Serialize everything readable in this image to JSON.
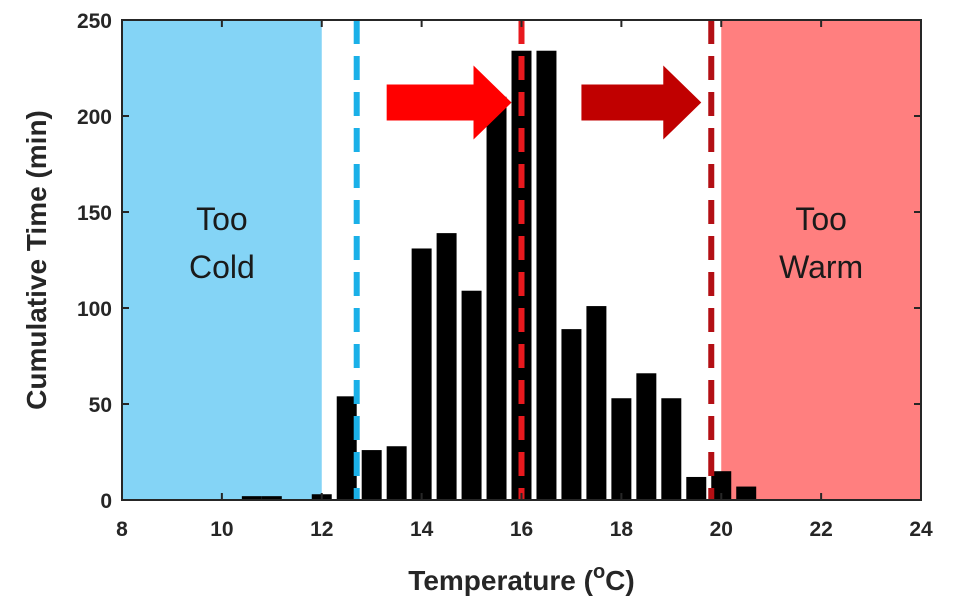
{
  "chart_data": {
    "type": "bar",
    "xlabel": "Temperature (",
    "xlabel_sup": "o",
    "xlabel_unit": "C)",
    "ylabel": "Cumulative Time (min)",
    "xlim": [
      8,
      24
    ],
    "ylim": [
      0,
      250
    ],
    "xticks": [
      "8",
      "10",
      "12",
      "14",
      "16",
      "18",
      "20",
      "22",
      "24"
    ],
    "yticks": [
      "0",
      "50",
      "100",
      "150",
      "200",
      "250"
    ],
    "bin_width": 0.4,
    "bins": [
      {
        "x": 10.6,
        "value": 2
      },
      {
        "x": 11.0,
        "value": 2
      },
      {
        "x": 12.0,
        "value": 3
      },
      {
        "x": 12.5,
        "value": 54
      },
      {
        "x": 13.0,
        "value": 26
      },
      {
        "x": 13.5,
        "value": 28
      },
      {
        "x": 14.0,
        "value": 131
      },
      {
        "x": 14.5,
        "value": 139
      },
      {
        "x": 15.0,
        "value": 109
      },
      {
        "x": 15.5,
        "value": 210
      },
      {
        "x": 16.0,
        "value": 234
      },
      {
        "x": 16.5,
        "value": 234
      },
      {
        "x": 17.0,
        "value": 89
      },
      {
        "x": 17.5,
        "value": 101
      },
      {
        "x": 18.0,
        "value": 53
      },
      {
        "x": 18.5,
        "value": 66
      },
      {
        "x": 19.0,
        "value": 53
      },
      {
        "x": 19.5,
        "value": 12
      },
      {
        "x": 20.0,
        "value": 15
      },
      {
        "x": 20.5,
        "value": 7
      }
    ],
    "regions": [
      {
        "label_lines": [
          "Too",
          "Cold"
        ],
        "x_start": 8,
        "x_end": 12,
        "color": "#84d4f6"
      },
      {
        "label_lines": [
          "Too",
          "Warm"
        ],
        "x_start": 20,
        "x_end": 24,
        "color": "#ff7f7f"
      }
    ],
    "thresholds": [
      {
        "x": 12.7,
        "color": "#1ab0e8"
      },
      {
        "x": 16.0,
        "color": "#e8191e"
      },
      {
        "x": 19.8,
        "color": "#b30f14"
      }
    ],
    "arrows": [
      {
        "x_start": 13.3,
        "x_end": 15.8,
        "y": 207,
        "color": "#ff0000"
      },
      {
        "x_start": 17.2,
        "x_end": 19.6,
        "y": 207,
        "color": "#c00000"
      }
    ],
    "bar_color": "#000000",
    "grid": false,
    "legend": "none"
  }
}
